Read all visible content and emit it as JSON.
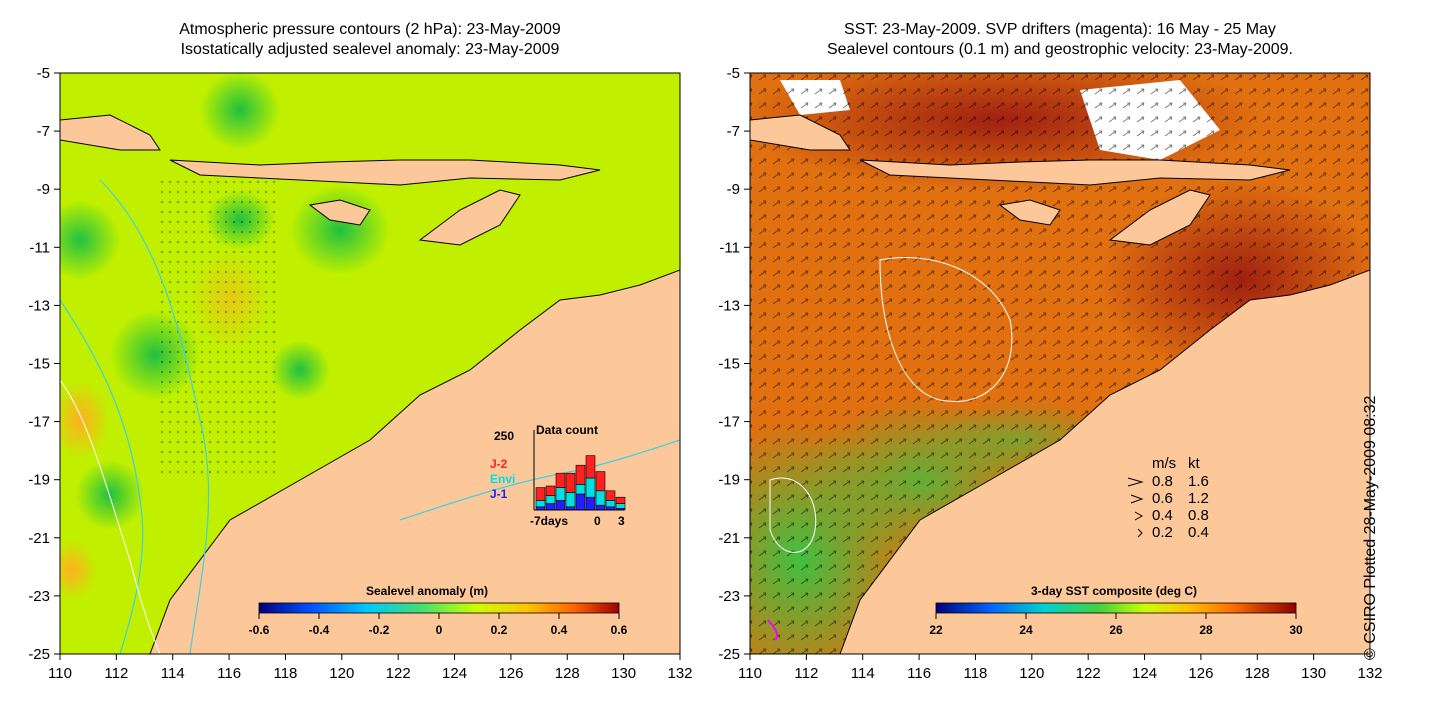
{
  "left_panel": {
    "title_line1": "Atmospheric pressure contours (2 hPa): 23-May-2009",
    "title_line2": "Isostatically adjusted sealevel anomaly: 23-May-2009",
    "colorbar": {
      "label": "Sealevel anomaly (m)",
      "ticks": [
        "-0.6",
        "-0.4",
        "-0.2",
        "0",
        "0.2",
        "0.4",
        "0.6"
      ],
      "colors": [
        "#00007a",
        "#0050ff",
        "#00c8ff",
        "#40e070",
        "#c8ff00",
        "#ffc000",
        "#ff6000",
        "#a00000"
      ]
    },
    "data_count": {
      "title": "Data count",
      "max_label": "250",
      "series": [
        {
          "name": "J-2",
          "color": "#ff2020"
        },
        {
          "name": "Envi",
          "color": "#00e0e0"
        },
        {
          "name": "J-1",
          "color": "#2020ff"
        }
      ],
      "x_ticks": [
        "-7days",
        "0",
        "3"
      ],
      "bars": [
        {
          "j1": 10,
          "envi": 20,
          "j2": 40
        },
        {
          "j1": 20,
          "envi": 25,
          "j2": 30
        },
        {
          "j1": 30,
          "envi": 40,
          "j2": 45
        },
        {
          "j1": 10,
          "envi": 45,
          "j2": 60
        },
        {
          "j1": 50,
          "envi": 30,
          "j2": 60
        },
        {
          "j1": 40,
          "envi": 60,
          "j2": 70
        },
        {
          "j1": 15,
          "envi": 45,
          "j2": 60
        },
        {
          "j1": 10,
          "envi": 20,
          "j2": 30
        },
        {
          "j1": 5,
          "envi": 15,
          "j2": 20
        }
      ]
    }
  },
  "right_panel": {
    "title_line1": "SST: 23-May-2009. SVP drifters (magenta): 16 May - 25 May",
    "title_line2": "Sealevel contours (0.1 m) and geostrophic velocity: 23-May-2009.",
    "colorbar": {
      "label": "3-day SST composite (deg C)",
      "ticks": [
        "22",
        "24",
        "26",
        "28",
        "30"
      ],
      "colors": [
        "#00007a",
        "#0064ff",
        "#00d0d0",
        "#40d040",
        "#c8ff00",
        "#ffc000",
        "#ff7000",
        "#c03000",
        "#900000"
      ]
    },
    "velocity_legend": {
      "header_ms": "m/s",
      "header_kt": "kt",
      "rows": [
        {
          "ms": "0.8",
          "kt": "1.6"
        },
        {
          "ms": "0.6",
          "kt": "1.2"
        },
        {
          "ms": "0.4",
          "kt": "0.8"
        },
        {
          "ms": "0.2",
          "kt": "0.4"
        }
      ]
    }
  },
  "axes": {
    "lon_ticks": [
      "110",
      "112",
      "114",
      "116",
      "118",
      "120",
      "122",
      "124",
      "126",
      "128",
      "130",
      "132"
    ],
    "lat_ticks": [
      "-5",
      "-7",
      "-9",
      "-11",
      "-13",
      "-15",
      "-17",
      "-19",
      "-21",
      "-23",
      "-25"
    ]
  },
  "credit": "© CSIRO Plotted 28-May-2009 08:32",
  "colors": {
    "land": "#fcc89a",
    "sea_left": "#c0f000",
    "sea_right": "#e07010",
    "contour_cyan": "#40d0e0"
  }
}
